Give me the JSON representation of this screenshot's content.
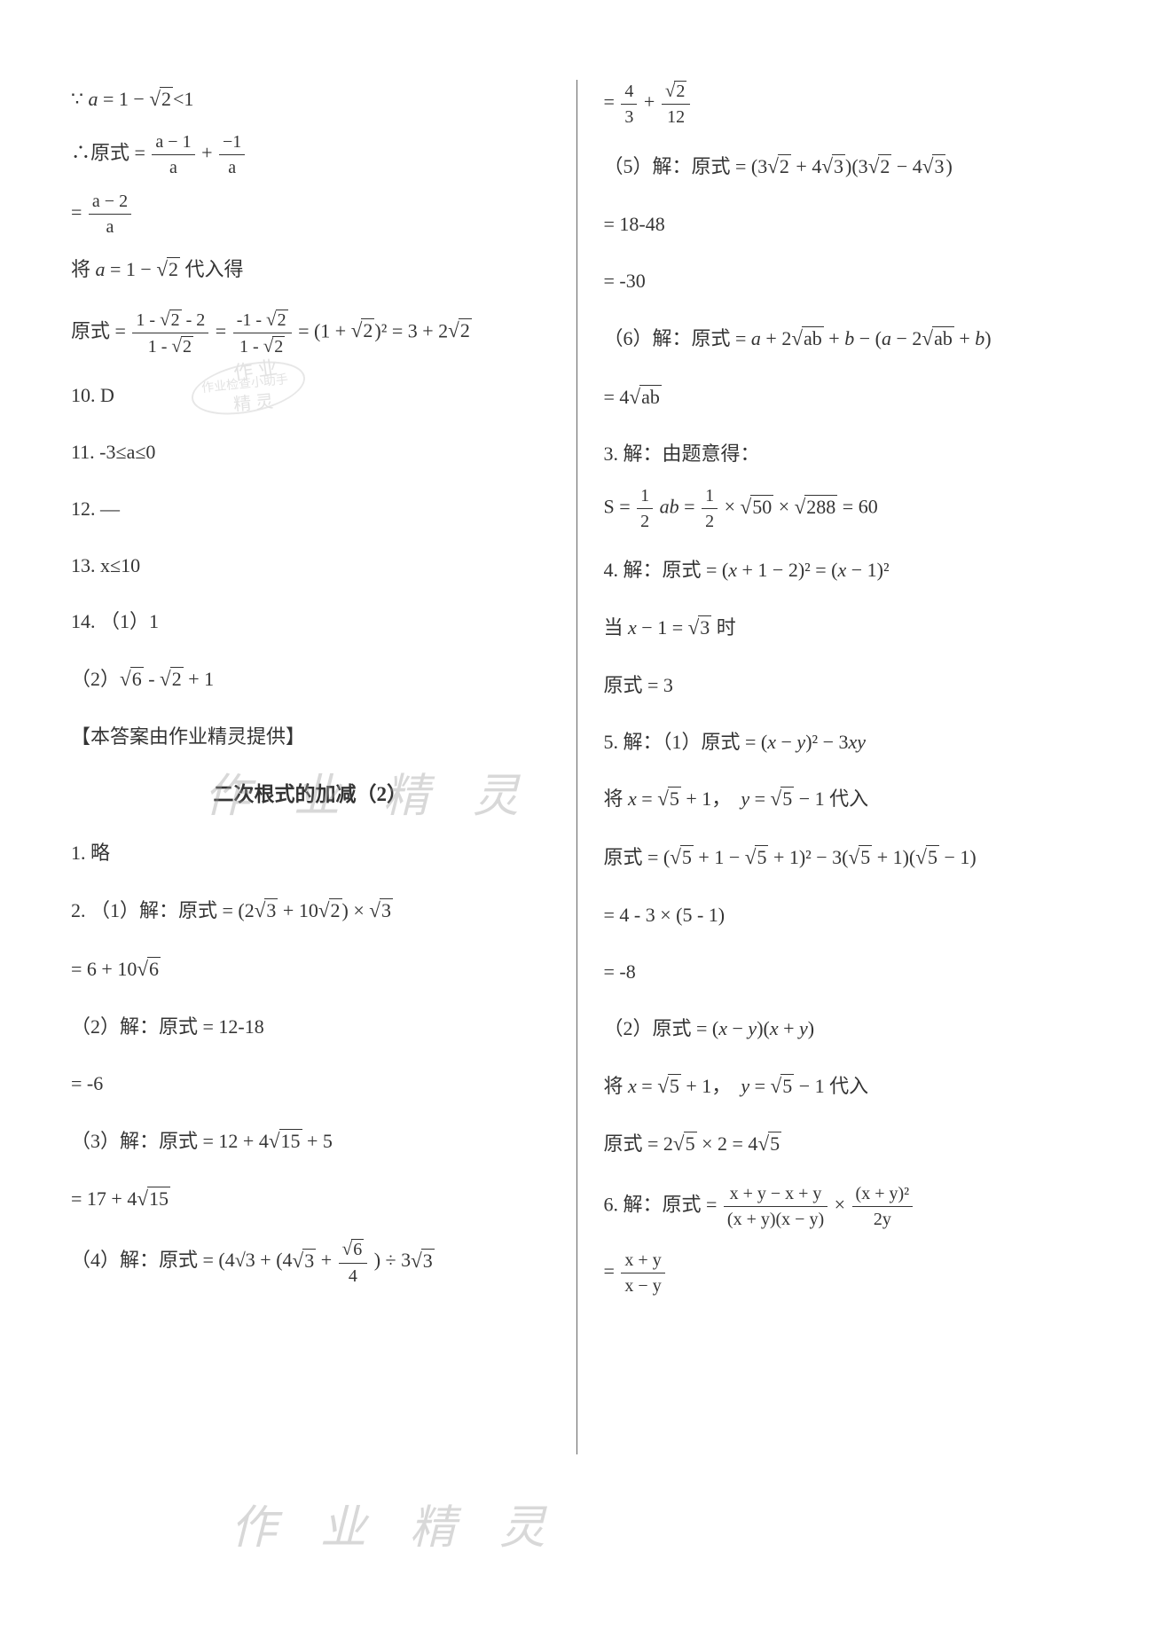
{
  "colors": {
    "text": "#343434",
    "background": "#ffffff",
    "divider": "#666666",
    "watermark": "#9a9a9a"
  },
  "left": {
    "l1a": "∵",
    "l1b": "a = 1 − √2 < 1",
    "l2a": "∴原式 =",
    "frac1_num": "a − 1",
    "frac1_den": "a",
    "plus": "+",
    "frac2_num": "−1",
    "frac2_den": "a",
    "l3_eq": "=",
    "frac3_num": "a − 2",
    "frac3_den": "a",
    "l4": "将 a = 1 − √2 代入得",
    "l5a": "原式 =",
    "frac5a_num": "1 - √2 - 2",
    "frac5a_den": "1 - √2",
    "frac5b_num": "-1 - √2",
    "frac5b_den": "1 - √2",
    "l5b": "= (1 + √2)² = 3 + 2√2",
    "q10": "10. D",
    "q11": "11. -3≤a≤0",
    "q12": "12. —",
    "q13": "13. x≤10",
    "q14": "14. （1）1",
    "q14_2": "（2）√6 - √2 + 1",
    "credit": "【本答案由作业精灵提供】",
    "title": "二次根式的加减（2）",
    "s1": "1. 略",
    "s2_1a": "2. （1）解：原式 = (2√3 + 10√2) × √3",
    "s2_1b": "= 6 + 10√6",
    "s2_2a": "（2）解：原式 = 12-18",
    "s2_2b": "= -6",
    "s2_3a": "（3）解：原式 = 12 + 4√15 + 5",
    "s2_3b": "= 17 + 4√15",
    "s2_4a_pre": "（4）解：原式 = (4√3 +",
    "s2_4a_frac_num": "√6",
    "s2_4a_frac_den": "4",
    "s2_4a_post": ") ÷ 3√3"
  },
  "right": {
    "r0_eq": "=",
    "r0_f1n": "4",
    "r0_f1d": "3",
    "r0_plus": "+",
    "r0_f2n": "√2",
    "r0_f2d": "12",
    "r5a": "（5）解：原式 = (3√2 + 4√3)(3√2 − 4√3)",
    "r5b": "= 18-48",
    "r5c": "= -30",
    "r6a": "（6）解：原式 = a + 2√(ab) + b − (a − 2√(ab) + b)",
    "r6b": "= 4√(ab)",
    "q3a": "3. 解：由题意得：",
    "q3b_pre": "S =",
    "q3b_f1n": "1",
    "q3b_f1d": "2",
    "q3b_mid1": "ab =",
    "q3b_f2n": "1",
    "q3b_f2d": "2",
    "q3b_post": "× √50 × √288 = 60",
    "q4a": "4. 解：原式 = (x + 1 − 2)² = (x − 1)²",
    "q4b": "当 x − 1 = √3 时",
    "q4c": "原式 = 3",
    "q5a": "5. 解：（1）原式 = (x − y)² − 3xy",
    "q5b": "将 x = √5 + 1，  y = √5 − 1 代入",
    "q5c": "原式 = (√5 + 1 − √5 + 1)² − 3(√5 + 1)(√5 − 1)",
    "q5d": "= 4 - 3 × (5 - 1)",
    "q5e": "= -8",
    "q5_2a": "（2）原式 = (x − y)(x + y)",
    "q5_2b": "将 x = √5 + 1，  y = √5 − 1 代入",
    "q5_2c": "原式 = 2√5 × 2 = 4√5",
    "q6a_pre": "6. 解：原式 =",
    "q6a_f1n": "x + y − x + y",
    "q6a_f1d": "(x + y)(x − y)",
    "q6a_mid": "×",
    "q6a_f2n": "(x + y)²",
    "q6a_f2d": "2y",
    "q6b_eq": "=",
    "q6b_fn": "x + y",
    "q6b_fd": "x − y"
  },
  "watermarks": {
    "mid": "作 业 精 灵",
    "bottom": "作 业 精 灵",
    "stamp_top": "作 业",
    "stamp_mid": "作业检查小助手",
    "stamp_bot": "精 灵"
  }
}
